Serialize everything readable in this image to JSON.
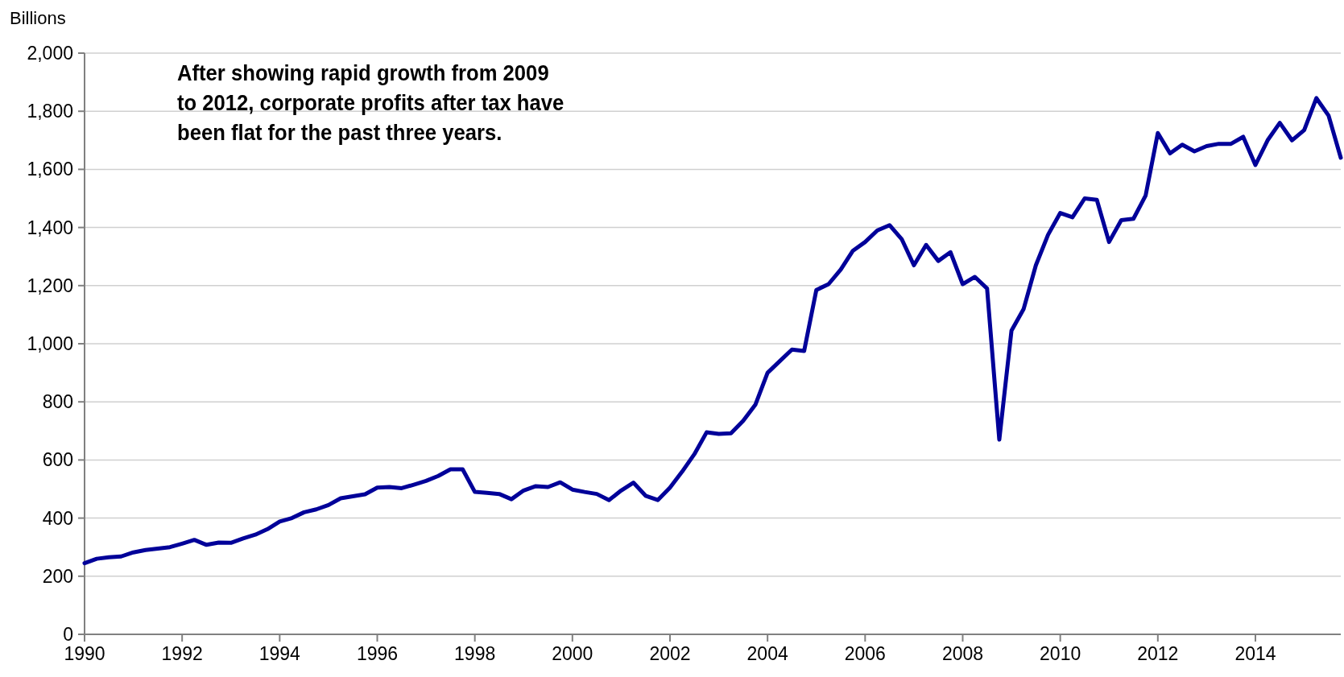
{
  "chart_data": {
    "type": "line",
    "ylabel": "Billions",
    "annotations": [
      "After showing rapid growth from 2009\nto 2012, corporate profits after tax have\nbeen flat for the past three years."
    ],
    "x": [
      1990,
      1990.25,
      1990.5,
      1990.75,
      1991,
      1991.25,
      1991.5,
      1991.75,
      1992,
      1992.25,
      1992.5,
      1992.75,
      1993,
      1993.25,
      1993.5,
      1993.75,
      1994,
      1994.25,
      1994.5,
      1994.75,
      1995,
      1995.25,
      1995.5,
      1995.75,
      1996,
      1996.25,
      1996.5,
      1996.75,
      1997,
      1997.25,
      1997.5,
      1997.75,
      1998,
      1998.25,
      1998.5,
      1998.75,
      1999,
      1999.25,
      1999.5,
      1999.75,
      2000,
      2000.25,
      2000.5,
      2000.75,
      2001,
      2001.25,
      2001.5,
      2001.75,
      2002,
      2002.25,
      2002.5,
      2002.75,
      2003,
      2003.25,
      2003.5,
      2003.75,
      2004,
      2004.25,
      2004.5,
      2004.75,
      2005,
      2005.25,
      2005.5,
      2005.75,
      2006,
      2006.25,
      2006.5,
      2006.75,
      2007,
      2007.25,
      2007.5,
      2007.75,
      2008,
      2008.25,
      2008.5,
      2008.75,
      2009,
      2009.25,
      2009.5,
      2009.75,
      2010,
      2010.25,
      2010.5,
      2010.75,
      2011,
      2011.25,
      2011.5,
      2011.75,
      2012,
      2012.25,
      2012.5,
      2012.75,
      2013,
      2013.25,
      2013.5,
      2013.75,
      2014,
      2014.25,
      2014.5,
      2014.75,
      2015,
      2015.25,
      2015.5,
      2015.75
    ],
    "series": [
      {
        "color": "#000099",
        "values": [
          245,
          260,
          265,
          268,
          282,
          290,
          295,
          300,
          312,
          325,
          308,
          316,
          315,
          330,
          343,
          362,
          388,
          400,
          420,
          430,
          445,
          468,
          475,
          482,
          505,
          507,
          503,
          515,
          528,
          545,
          568,
          568,
          490,
          487,
          483,
          465,
          495,
          510,
          507,
          523,
          498,
          490,
          483,
          462,
          495,
          522,
          477,
          462,
          505,
          560,
          620,
          695,
          690,
          692,
          735,
          790,
          900,
          940,
          980,
          975,
          1185,
          1205,
          1255,
          1320,
          1350,
          1390,
          1408,
          1360,
          1270,
          1340,
          1285,
          1315,
          1205,
          1230,
          1190,
          670,
          1045,
          1120,
          1270,
          1375,
          1450,
          1435,
          1500,
          1495,
          1350,
          1425,
          1430,
          1510,
          1725,
          1655,
          1685,
          1662,
          1680,
          1688,
          1688,
          1712,
          1615,
          1700,
          1760,
          1700,
          1735,
          1845,
          1785,
          1640
        ]
      }
    ],
    "xlim": [
      1990,
      2015.75
    ],
    "xticks": [
      1990,
      1992,
      1994,
      1996,
      1998,
      2000,
      2002,
      2004,
      2006,
      2008,
      2010,
      2012,
      2014
    ],
    "ylim": [
      0,
      2000
    ],
    "yticks": [
      {
        "value": 0,
        "label": "0"
      },
      {
        "value": 200,
        "label": "200"
      },
      {
        "value": 400,
        "label": "400"
      },
      {
        "value": 600,
        "label": "600"
      },
      {
        "value": 800,
        "label": "800"
      },
      {
        "value": 1000,
        "label": "1,000"
      },
      {
        "value": 1200,
        "label": "1,200"
      },
      {
        "value": 1400,
        "label": "1,400"
      },
      {
        "value": 1600,
        "label": "1,600"
      },
      {
        "value": 1800,
        "label": "1,800"
      },
      {
        "value": 2000,
        "label": "2,000"
      }
    ],
    "grid": "y",
    "marker": "none",
    "line_style": "solid"
  }
}
